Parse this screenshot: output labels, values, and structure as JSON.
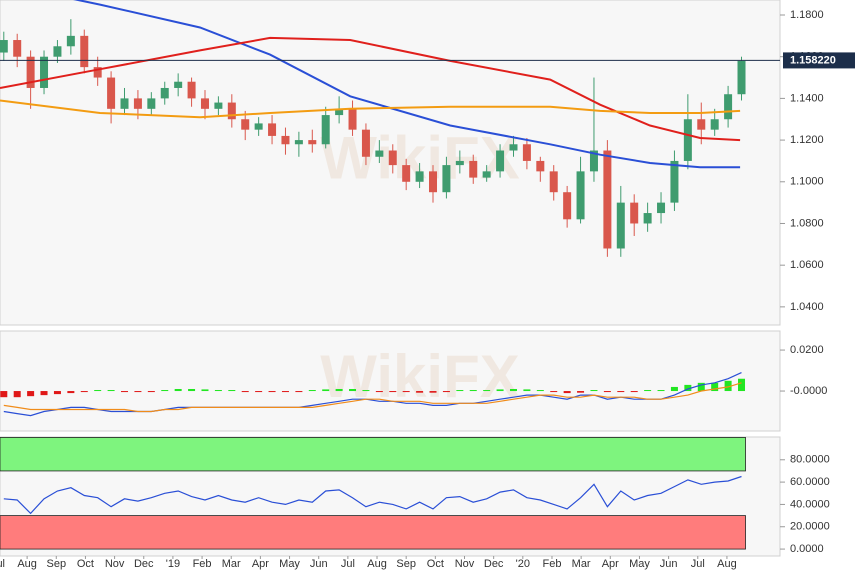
{
  "chart_data": [
    {
      "type": "candlestick",
      "watermark": "WikiFX",
      "xlim": [
        0.07,
        26.82
      ],
      "x": [
        0.2,
        0.66,
        1.12,
        1.58,
        2.04,
        2.5,
        2.96,
        3.42,
        3.88,
        4.34,
        4.8,
        5.26,
        5.72,
        6.18,
        6.64,
        7.1,
        7.56,
        8.02,
        8.48,
        8.94,
        9.4,
        9.86,
        10.32,
        10.78,
        11.24,
        11.7,
        12.16,
        12.62,
        13.08,
        13.54,
        14,
        14.46,
        14.92,
        15.38,
        15.84,
        16.3,
        16.76,
        17.22,
        17.68,
        18.14,
        18.6,
        19.06,
        19.52,
        19.98,
        20.44,
        20.9,
        21.36,
        21.82,
        22.28,
        22.74,
        23.2,
        23.66,
        24.12,
        24.58,
        25.04,
        25.5
      ],
      "open": [
        1.162,
        1.168,
        1.16,
        1.145,
        1.16,
        1.165,
        1.17,
        1.155,
        1.15,
        1.135,
        1.14,
        1.135,
        1.14,
        1.145,
        1.148,
        1.14,
        1.135,
        1.138,
        1.13,
        1.125,
        1.128,
        1.122,
        1.118,
        1.12,
        1.118,
        1.132,
        1.135,
        1.125,
        1.112,
        1.115,
        1.108,
        1.1,
        1.105,
        1.095,
        1.108,
        1.11,
        1.102,
        1.105,
        1.115,
        1.118,
        1.11,
        1.105,
        1.095,
        1.082,
        1.105,
        1.115,
        1.068,
        1.09,
        1.08,
        1.085,
        1.09,
        1.11,
        1.13,
        1.125,
        1.13,
        1.142
      ],
      "high": [
        1.172,
        1.171,
        1.163,
        1.163,
        1.168,
        1.178,
        1.173,
        1.16,
        1.153,
        1.145,
        1.144,
        1.143,
        1.148,
        1.152,
        1.15,
        1.144,
        1.141,
        1.142,
        1.134,
        1.131,
        1.132,
        1.126,
        1.124,
        1.125,
        1.136,
        1.141,
        1.139,
        1.128,
        1.12,
        1.118,
        1.111,
        1.109,
        1.108,
        1.112,
        1.115,
        1.113,
        1.108,
        1.118,
        1.122,
        1.121,
        1.112,
        1.108,
        1.098,
        1.112,
        1.15,
        1.12,
        1.098,
        1.094,
        1.09,
        1.095,
        1.115,
        1.142,
        1.138,
        1.135,
        1.146,
        1.16
      ],
      "low": [
        1.158,
        1.155,
        1.135,
        1.142,
        1.157,
        1.161,
        1.152,
        1.146,
        1.128,
        1.132,
        1.13,
        1.132,
        1.137,
        1.141,
        1.136,
        1.13,
        1.132,
        1.126,
        1.12,
        1.122,
        1.118,
        1.113,
        1.112,
        1.114,
        1.116,
        1.128,
        1.122,
        1.108,
        1.109,
        1.104,
        1.096,
        1.097,
        1.09,
        1.092,
        1.104,
        1.099,
        1.1,
        1.102,
        1.112,
        1.106,
        1.1,
        1.091,
        1.078,
        1.08,
        1.1,
        1.064,
        1.064,
        1.074,
        1.076,
        1.08,
        1.086,
        1.106,
        1.118,
        1.122,
        1.126,
        1.139
      ],
      "close": [
        1.168,
        1.16,
        1.145,
        1.16,
        1.165,
        1.17,
        1.155,
        1.15,
        1.135,
        1.14,
        1.135,
        1.14,
        1.145,
        1.148,
        1.14,
        1.135,
        1.138,
        1.13,
        1.125,
        1.128,
        1.122,
        1.118,
        1.12,
        1.118,
        1.132,
        1.135,
        1.125,
        1.112,
        1.115,
        1.108,
        1.1,
        1.105,
        1.095,
        1.108,
        1.11,
        1.102,
        1.105,
        1.115,
        1.118,
        1.11,
        1.105,
        1.095,
        1.082,
        1.105,
        1.115,
        1.068,
        1.09,
        1.08,
        1.085,
        1.09,
        1.11,
        1.13,
        1.125,
        1.13,
        1.142,
        1.158
      ],
      "up_color": "#3f9c6f",
      "down_color": "#d9574c",
      "series": [
        {
          "color": "#2a4fd6",
          "x": [
            0.07,
            3.5,
            6.93,
            9.33,
            12.08,
            15.51,
            18.94,
            20.65,
            22.36,
            24.08,
            25.45
          ],
          "values": [
            1.195,
            1.185,
            1.174,
            1.161,
            1.141,
            1.127,
            1.118,
            1.113,
            1.109,
            1.107,
            1.107
          ]
        },
        {
          "color": "#e0201c",
          "x": [
            0.07,
            3.5,
            6.93,
            9.33,
            12.08,
            15.51,
            18.94,
            20.65,
            22.36,
            24.08,
            25.45
          ],
          "values": [
            1.145,
            1.154,
            1.163,
            1.169,
            1.168,
            1.158,
            1.149,
            1.137,
            1.127,
            1.121,
            1.12
          ]
        },
        {
          "color": "#f39c12",
          "x": [
            0.07,
            3.5,
            6.93,
            9.33,
            12.08,
            15.51,
            18.94,
            20.65,
            22.36,
            24.08,
            25.45
          ],
          "values": [
            1.139,
            1.133,
            1.131,
            1.133,
            1.135,
            1.136,
            1.136,
            1.134,
            1.133,
            1.133,
            1.134
          ]
        }
      ],
      "current_price": {
        "value": 1.15822,
        "label": "1.158220",
        "color": "#1c2e4a"
      },
      "ylim": [
        1.0313,
        1.1872
      ],
      "yticks": [
        {
          "value": 1.18,
          "label": "1.1800"
        },
        {
          "value": 1.16,
          "label": "1.1600"
        },
        {
          "value": 1.14,
          "label": "1.1400"
        },
        {
          "value": 1.12,
          "label": "1.1200"
        },
        {
          "value": 1.1,
          "label": "1.1000"
        },
        {
          "value": 1.08,
          "label": "1.0800"
        },
        {
          "value": 1.06,
          "label": "1.0600"
        },
        {
          "value": 1.04,
          "label": "1.0400"
        }
      ]
    },
    {
      "type": "macd",
      "watermark": "WikiFX",
      "xlim": [
        0.07,
        26.82
      ],
      "x": [
        0.2,
        0.66,
        1.12,
        1.58,
        2.04,
        2.5,
        2.96,
        3.42,
        3.88,
        4.34,
        4.8,
        5.26,
        5.72,
        6.18,
        6.64,
        7.1,
        7.56,
        8.02,
        8.48,
        8.94,
        9.4,
        9.86,
        10.32,
        10.78,
        11.24,
        11.7,
        12.16,
        12.62,
        13.08,
        13.54,
        14,
        14.46,
        14.92,
        15.38,
        15.84,
        16.3,
        16.76,
        17.22,
        17.68,
        18.14,
        18.6,
        19.06,
        19.52,
        19.98,
        20.44,
        20.9,
        21.36,
        21.82,
        22.28,
        22.74,
        23.2,
        23.66,
        24.12,
        24.58,
        25.04,
        25.5
      ],
      "histogram": [
        -0.003,
        -0.003,
        -0.0025,
        -0.002,
        -0.0015,
        -0.001,
        -0.0005,
        0.0005,
        0.0005,
        -0.0005,
        -0.0005,
        -0.0005,
        0.0005,
        0.001,
        0.001,
        0.0008,
        0.0005,
        0.0005,
        -0.0005,
        -0.0005,
        -0.0005,
        -0.0005,
        -0.0005,
        0.0005,
        0.0008,
        0.001,
        0.001,
        0.0005,
        -0.0005,
        -0.0005,
        -0.0005,
        -0.0008,
        -0.0008,
        -0.0005,
        0.0005,
        0.0005,
        0.0005,
        0.0008,
        0.001,
        0.0008,
        0.0005,
        -0.0005,
        -0.001,
        -0.0008,
        0.0005,
        -0.0005,
        -0.0005,
        -0.0005,
        0.0005,
        0.0005,
        0.002,
        0.003,
        0.004,
        0.004,
        0.005,
        0.006
      ],
      "up_color": "#22e622",
      "down_color": "#e01818",
      "series": [
        {
          "color": "#2a4fd6",
          "values": [
            -0.01,
            -0.011,
            -0.012,
            -0.01,
            -0.009,
            -0.008,
            -0.008,
            -0.009,
            -0.01,
            -0.01,
            -0.01,
            -0.01,
            -0.009,
            -0.008,
            -0.008,
            -0.008,
            -0.008,
            -0.008,
            -0.008,
            -0.008,
            -0.008,
            -0.008,
            -0.008,
            -0.007,
            -0.006,
            -0.005,
            -0.004,
            -0.004,
            -0.005,
            -0.005,
            -0.006,
            -0.006,
            -0.007,
            -0.007,
            -0.006,
            -0.006,
            -0.005,
            -0.004,
            -0.003,
            -0.002,
            -0.002,
            -0.003,
            -0.004,
            -0.002,
            -0.002,
            -0.004,
            -0.003,
            -0.004,
            -0.004,
            -0.004,
            -0.002,
            0.001,
            0.003,
            0.004,
            0.006,
            0.009
          ]
        },
        {
          "color": "#f08c1a",
          "values": [
            -0.007,
            -0.008,
            -0.009,
            -0.009,
            -0.009,
            -0.009,
            -0.009,
            -0.009,
            -0.009,
            -0.009,
            -0.01,
            -0.01,
            -0.009,
            -0.009,
            -0.008,
            -0.008,
            -0.008,
            -0.008,
            -0.008,
            -0.008,
            -0.008,
            -0.008,
            -0.008,
            -0.008,
            -0.007,
            -0.006,
            -0.005,
            -0.004,
            -0.004,
            -0.005,
            -0.005,
            -0.005,
            -0.006,
            -0.006,
            -0.006,
            -0.006,
            -0.006,
            -0.005,
            -0.004,
            -0.003,
            -0.002,
            -0.002,
            -0.003,
            -0.003,
            -0.002,
            -0.003,
            -0.003,
            -0.003,
            -0.004,
            -0.004,
            -0.003,
            -0.002,
            0.0,
            0.001,
            0.002,
            0.004
          ]
        }
      ],
      "ylim": [
        -0.0195,
        0.0293
      ],
      "yticks": [
        {
          "value": 0.02,
          "label": "0.0200"
        },
        {
          "value": 0,
          "label": "-0.0000"
        }
      ]
    },
    {
      "type": "rsi",
      "xlim": [
        0.07,
        26.82
      ],
      "x": [
        0.2,
        0.66,
        1.12,
        1.58,
        2.04,
        2.5,
        2.96,
        3.42,
        3.88,
        4.34,
        4.8,
        5.26,
        5.72,
        6.18,
        6.64,
        7.1,
        7.56,
        8.02,
        8.48,
        8.94,
        9.4,
        9.86,
        10.32,
        10.78,
        11.24,
        11.7,
        12.16,
        12.62,
        13.08,
        13.54,
        14,
        14.46,
        14.92,
        15.38,
        15.84,
        16.3,
        16.76,
        17.22,
        17.68,
        18.14,
        18.6,
        19.06,
        19.52,
        19.98,
        20.44,
        20.9,
        21.36,
        21.82,
        22.28,
        22.74,
        23.2,
        23.66,
        24.12,
        24.58,
        25.04,
        25.5
      ],
      "bands": [
        {
          "from": 70,
          "to": 100,
          "color": "#7ef47e"
        },
        {
          "from": 0,
          "to": 30,
          "color": "#ff7c7c"
        }
      ],
      "series": [
        {
          "color": "#2a4fd6",
          "values": [
            45,
            44,
            32,
            45,
            52,
            55,
            48,
            46,
            38,
            45,
            43,
            46,
            50,
            52,
            47,
            44,
            48,
            44,
            42,
            46,
            42,
            40,
            44,
            42,
            52,
            53,
            46,
            38,
            42,
            40,
            36,
            42,
            36,
            46,
            47,
            42,
            45,
            51,
            53,
            46,
            44,
            40,
            36,
            46,
            58,
            38,
            52,
            44,
            48,
            50,
            56,
            62,
            58,
            60,
            61,
            65
          ]
        }
      ],
      "ylim": [
        -6.2,
        100.4
      ],
      "yticks": [
        {
          "value": 80,
          "label": "80.0000"
        },
        {
          "value": 60,
          "label": "60.0000"
        },
        {
          "value": 40,
          "label": "40.0000"
        },
        {
          "value": 20,
          "label": "20.0000"
        },
        {
          "value": 0,
          "label": "0.0000"
        }
      ],
      "xticks": [
        {
          "value": 0,
          "label": "Jul"
        },
        {
          "value": 1,
          "label": "Aug"
        },
        {
          "value": 2,
          "label": "Sep"
        },
        {
          "value": 3,
          "label": "Oct"
        },
        {
          "value": 4,
          "label": "Nov"
        },
        {
          "value": 5,
          "label": "Dec"
        },
        {
          "value": 6,
          "label": "'19"
        },
        {
          "value": 7,
          "label": "Feb"
        },
        {
          "value": 8,
          "label": "Mar"
        },
        {
          "value": 9,
          "label": "Apr"
        },
        {
          "value": 10,
          "label": "May"
        },
        {
          "value": 11,
          "label": "Jun"
        },
        {
          "value": 12,
          "label": "Jul"
        },
        {
          "value": 13,
          "label": "Aug"
        },
        {
          "value": 14,
          "label": "Sep"
        },
        {
          "value": 15,
          "label": "Oct"
        },
        {
          "value": 16,
          "label": "Nov"
        },
        {
          "value": 17,
          "label": "Dec"
        },
        {
          "value": 18,
          "label": "'20"
        },
        {
          "value": 19,
          "label": "Feb"
        },
        {
          "value": 20,
          "label": "Mar"
        },
        {
          "value": 21,
          "label": "Apr"
        },
        {
          "value": 22,
          "label": "May"
        },
        {
          "value": 23,
          "label": "Jun"
        },
        {
          "value": 24,
          "label": "Jul"
        },
        {
          "value": 25,
          "label": "Aug"
        }
      ]
    }
  ]
}
